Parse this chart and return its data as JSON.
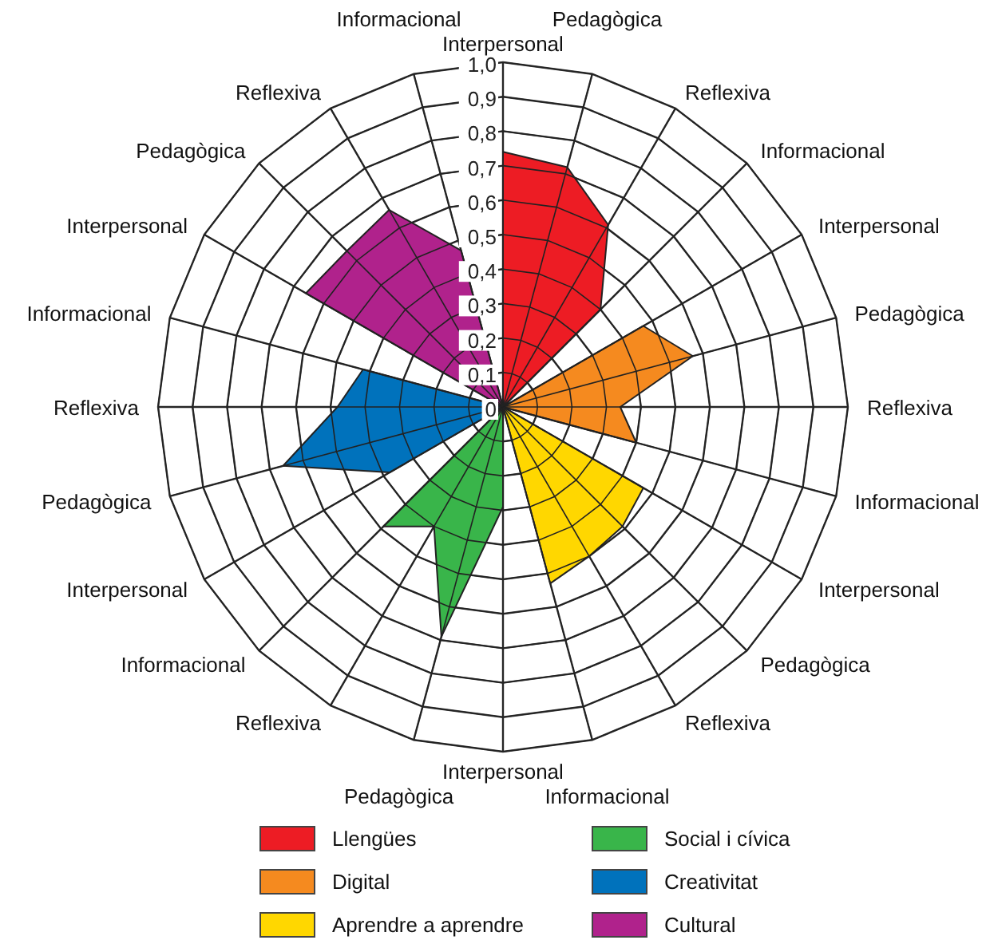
{
  "chart_data": {
    "type": "radar",
    "categories": [
      "Interpersonal",
      "Pedagògica",
      "Reflexiva",
      "Informacional",
      "Interpersonal",
      "Pedagògica",
      "Reflexiva",
      "Informacional",
      "Interpersonal",
      "Pedagògica",
      "Reflexiva",
      "Informacional",
      "Interpersonal",
      "Pedagògica",
      "Reflexiva",
      "Informacional",
      "Interpersonal",
      "Pedagògica",
      "Reflexiva",
      "Informacional",
      "Interpersonal",
      "Pedagògica",
      "Reflexiva",
      "Informacional"
    ],
    "ylim": [
      0,
      1
    ],
    "yticks": [
      0,
      {
        "value": 0.1,
        "label": "0,1"
      },
      {
        "value": 0.2,
        "label": "0,2"
      },
      {
        "value": 0.3,
        "label": "0,3"
      },
      {
        "value": 0.4,
        "label": "0,4"
      },
      {
        "value": 0.5,
        "label": "0,5"
      },
      {
        "value": 0.6,
        "label": "0,6"
      },
      {
        "value": 0.7,
        "label": "0,7"
      },
      {
        "value": 0.8,
        "label": "0,8"
      },
      {
        "value": 0.9,
        "label": "0,9"
      },
      {
        "value": 1,
        "label": "1,0"
      }
    ],
    "grid": true,
    "legend": "bottom",
    "marker": "none",
    "series": [
      {
        "name": "Llengües",
        "color": "#ed1c24",
        "values": [
          0.74,
          0.72,
          0.61,
          0.4,
          0,
          0,
          0,
          0,
          0,
          0,
          0,
          0,
          0,
          0,
          0,
          0,
          0,
          0,
          0,
          0,
          0,
          0,
          0,
          0
        ]
      },
      {
        "name": "Digital",
        "color": "#f58a1f",
        "values": [
          0,
          0,
          0,
          0,
          0.47,
          0.57,
          0.34,
          0.4,
          0,
          0,
          0,
          0,
          0,
          0,
          0,
          0,
          0,
          0,
          0,
          0,
          0,
          0,
          0,
          0
        ]
      },
      {
        "name": "Aprendre a aprendre",
        "color": "#ffd700",
        "values": [
          0,
          0,
          0,
          0,
          0,
          0,
          0,
          0,
          0.47,
          0.49,
          0.5,
          0.53,
          0,
          0,
          0,
          0,
          0,
          0,
          0,
          0,
          0,
          0,
          0,
          0
        ]
      },
      {
        "name": "Social i cívica",
        "color": "#39b54a",
        "values": [
          0,
          0,
          0,
          0,
          0,
          0,
          0,
          0,
          0,
          0,
          0,
          0,
          0.29,
          0.69,
          0.4,
          0.49,
          0,
          0,
          0,
          0,
          0,
          0,
          0,
          0
        ]
      },
      {
        "name": "Creativitat",
        "color": "#0072bc",
        "values": [
          0,
          0,
          0,
          0,
          0,
          0,
          0,
          0,
          0,
          0,
          0,
          0,
          0,
          0,
          0,
          0,
          0.38,
          0.66,
          0.48,
          0.42,
          0,
          0,
          0,
          0
        ]
      },
      {
        "name": "Cultural",
        "color": "#b0228c",
        "values": [
          0,
          0,
          0,
          0,
          0,
          0,
          0,
          0,
          0,
          0,
          0,
          0,
          0,
          0,
          0,
          0,
          0,
          0,
          0,
          0,
          0.66,
          0.64,
          0.66,
          0.47
        ]
      }
    ]
  }
}
